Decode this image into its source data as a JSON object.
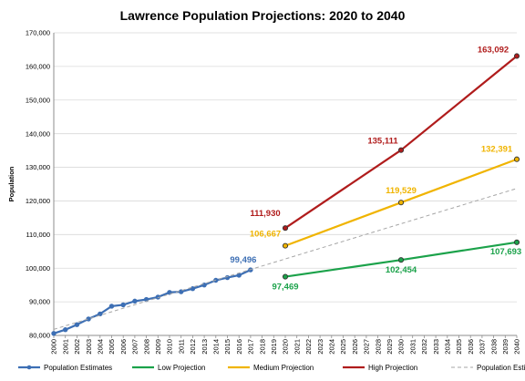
{
  "chart_data": {
    "type": "line",
    "title": "Lawrence Population Projections: 2020 to 2040",
    "xlabel": "",
    "ylabel": "Population",
    "xlim": [
      2000,
      2040
    ],
    "ylim": [
      80000,
      170000
    ],
    "y_ticks": [
      80000,
      90000,
      100000,
      110000,
      120000,
      130000,
      140000,
      150000,
      160000,
      170000
    ],
    "y_tick_labels": [
      "80,000",
      "90,000",
      "100,000",
      "110,000",
      "120,000",
      "130,000",
      "140,000",
      "150,000",
      "160,000",
      "170,000"
    ],
    "x_ticks": [
      2000,
      2001,
      2002,
      2003,
      2004,
      2005,
      2006,
      2007,
      2008,
      2009,
      2010,
      2011,
      2012,
      2013,
      2014,
      2015,
      2016,
      2017,
      2018,
      2019,
      2020,
      2021,
      2022,
      2023,
      2024,
      2025,
      2026,
      2027,
      2028,
      2029,
      2030,
      2031,
      2032,
      2033,
      2034,
      2035,
      2036,
      2037,
      2038,
      2039,
      2040
    ],
    "grid": "horizontal",
    "legend_position": "bottom",
    "series": [
      {
        "name": "Population Estimates",
        "color": "#3d6fb4",
        "marker": "circle-filled",
        "x": [
          2000,
          2001,
          2002,
          2003,
          2004,
          2005,
          2006,
          2007,
          2008,
          2009,
          2010,
          2011,
          2012,
          2013,
          2014,
          2015,
          2016,
          2017
        ],
        "y": [
          80600,
          81700,
          83200,
          84900,
          86400,
          88700,
          89100,
          90200,
          90700,
          91400,
          92800,
          93000,
          93900,
          95000,
          96400,
          97200,
          97900,
          99496
        ],
        "labels": [
          {
            "x": 2017,
            "y": 99496,
            "text": "99,496"
          }
        ]
      },
      {
        "name": "Low Projection",
        "color": "#1ba24a",
        "marker": "circle-open",
        "x": [
          2020,
          2030,
          2040
        ],
        "y": [
          97469,
          102454,
          107693
        ],
        "labels": [
          {
            "x": 2020,
            "y": 97469,
            "text": "97,469"
          },
          {
            "x": 2030,
            "y": 102454,
            "text": "102,454"
          },
          {
            "x": 2040,
            "y": 107693,
            "text": "107,693"
          }
        ]
      },
      {
        "name": "Medium Projection",
        "color": "#f0b400",
        "marker": "circle-open",
        "x": [
          2020,
          2030,
          2040
        ],
        "y": [
          106667,
          119529,
          132391
        ],
        "labels": [
          {
            "x": 2020,
            "y": 106667,
            "text": "106,667"
          },
          {
            "x": 2030,
            "y": 119529,
            "text": "119,529"
          },
          {
            "x": 2040,
            "y": 132391,
            "text": "132,391"
          }
        ]
      },
      {
        "name": "High Projection",
        "color": "#b01c1c",
        "marker": "circle-open",
        "x": [
          2020,
          2030,
          2040
        ],
        "y": [
          111930,
          135111,
          163092
        ],
        "labels": [
          {
            "x": 2020,
            "y": 111930,
            "text": "111,930"
          },
          {
            "x": 2030,
            "y": 135111,
            "text": "135,111"
          },
          {
            "x": 2040,
            "y": 163092,
            "text": "163,092"
          }
        ]
      },
      {
        "name": "Population Estimates Trendline",
        "color": "#a6a6a6",
        "style": "dashed",
        "x": [
          2000,
          2040
        ],
        "y": [
          81800,
          123700
        ]
      }
    ]
  }
}
